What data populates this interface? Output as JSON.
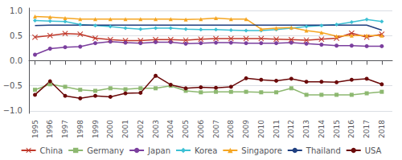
{
  "chart_data": {
    "type": "line",
    "x": [
      1995,
      1996,
      1997,
      1998,
      1999,
      2000,
      2001,
      2002,
      2003,
      2004,
      2005,
      2006,
      2007,
      2008,
      2009,
      2010,
      2011,
      2012,
      2013,
      2014,
      2015,
      2016,
      2017,
      2018
    ],
    "series": [
      {
        "name": "China",
        "color": "#c0392b",
        "marker": "x",
        "values": [
          0.47,
          0.5,
          0.54,
          0.53,
          0.45,
          0.42,
          0.4,
          0.4,
          0.42,
          0.42,
          0.41,
          0.43,
          0.44,
          0.44,
          0.44,
          0.44,
          0.43,
          0.42,
          0.41,
          0.43,
          0.45,
          0.55,
          0.47,
          0.53
        ]
      },
      {
        "name": "Germany",
        "color": "#8db870",
        "marker": "square",
        "values": [
          -0.58,
          -0.47,
          -0.52,
          -0.58,
          -0.6,
          -0.55,
          -0.57,
          -0.55,
          -0.55,
          -0.5,
          -0.6,
          -0.63,
          -0.62,
          -0.62,
          -0.62,
          -0.63,
          -0.63,
          -0.55,
          -0.68,
          -0.68,
          -0.68,
          -0.68,
          -0.65,
          -0.62
        ]
      },
      {
        "name": "Japan",
        "color": "#7b3f9e",
        "marker": "circle",
        "values": [
          0.12,
          0.24,
          0.27,
          0.28,
          0.35,
          0.38,
          0.36,
          0.35,
          0.37,
          0.37,
          0.34,
          0.35,
          0.36,
          0.36,
          0.35,
          0.35,
          0.35,
          0.36,
          0.34,
          0.32,
          0.3,
          0.3,
          0.29,
          0.29
        ]
      },
      {
        "name": "Korea",
        "color": "#3cc0d4",
        "marker": "diamond",
        "values": [
          0.8,
          0.79,
          0.78,
          0.72,
          0.7,
          0.68,
          0.65,
          0.63,
          0.65,
          0.65,
          0.63,
          0.62,
          0.62,
          0.61,
          0.6,
          0.6,
          0.62,
          0.65,
          0.68,
          0.7,
          0.72,
          0.77,
          0.82,
          0.78
        ]
      },
      {
        "name": "Singapore",
        "color": "#f5a623",
        "marker": "triangle",
        "values": [
          0.88,
          0.87,
          0.85,
          0.83,
          0.83,
          0.83,
          0.83,
          0.83,
          0.83,
          0.83,
          0.82,
          0.83,
          0.85,
          0.83,
          0.83,
          0.63,
          0.65,
          0.66,
          0.6,
          0.56,
          0.49,
          0.5,
          0.5,
          0.5
        ]
      },
      {
        "name": "Thailand",
        "color": "#1f3f80",
        "marker": "none",
        "values": [
          0.7,
          0.71,
          0.71,
          0.71,
          0.71,
          0.71,
          0.71,
          0.71,
          0.71,
          0.71,
          0.71,
          0.71,
          0.71,
          0.71,
          0.71,
          0.71,
          0.71,
          0.71,
          0.71,
          0.71,
          0.71,
          0.71,
          0.71,
          0.61
        ]
      },
      {
        "name": "USA",
        "color": "#6b0a0a",
        "marker": "circle",
        "values": [
          -0.68,
          -0.41,
          -0.7,
          -0.75,
          -0.7,
          -0.72,
          -0.65,
          -0.64,
          -0.3,
          -0.48,
          -0.55,
          -0.53,
          -0.54,
          -0.52,
          -0.35,
          -0.38,
          -0.4,
          -0.36,
          -0.42,
          -0.42,
          -0.43,
          -0.38,
          -0.36,
          -0.47
        ]
      }
    ],
    "xlim": [
      1994.6,
      2018.7
    ],
    "xticks": [
      1995,
      1996,
      1997,
      1998,
      1999,
      2000,
      2001,
      2002,
      2003,
      2004,
      2005,
      2006,
      2007,
      2008,
      2009,
      2010,
      2011,
      2012,
      2013,
      2014,
      2015,
      2016,
      2017,
      2018
    ],
    "ylim": [
      -1.05,
      1.05
    ],
    "yticks": [
      {
        "value": -1.0,
        "label": "−1.0"
      },
      {
        "value": -0.5,
        "label": "−0.5"
      },
      {
        "value": 0.0,
        "label": "0.0"
      },
      0.5,
      {
        "value": 1.0,
        "label": "1.0"
      }
    ],
    "grid": true,
    "legend": "bottom"
  }
}
